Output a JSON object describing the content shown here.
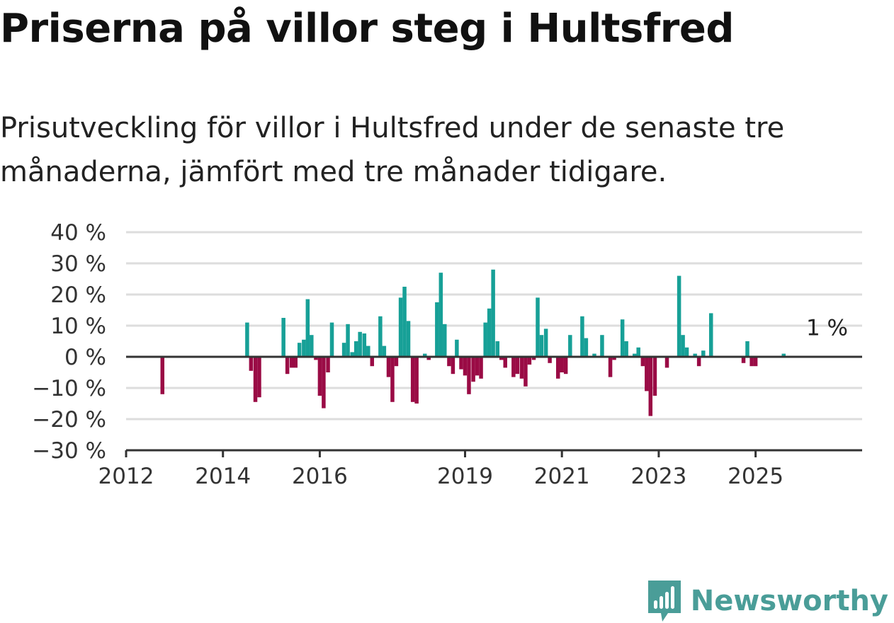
{
  "title": "Priserna på villor steg i Hultsfred",
  "subtitle": "Prisutveckling för villor i Hultsfred under de senaste tre månaderna, jämfört med tre månader tidigare.",
  "brand": "Newsworthy",
  "colors": {
    "positive": "#17a097",
    "negative": "#9a0b45",
    "grid": "#dddddd",
    "axis": "#333333",
    "brand": "#4a9d98"
  },
  "chart_data": {
    "type": "bar",
    "ylim": [
      -30,
      40
    ],
    "xlim": [
      2012.0,
      2027.2
    ],
    "y_ticks": [
      {
        "value": 40,
        "label": "40 %"
      },
      {
        "value": 30,
        "label": "30 %"
      },
      {
        "value": 20,
        "label": "20 %"
      },
      {
        "value": 10,
        "label": "10 %"
      },
      {
        "value": 0,
        "label": "0 %"
      },
      {
        "value": -10,
        "label": "−10 %"
      },
      {
        "value": -20,
        "label": "−20 %"
      },
      {
        "value": -30,
        "label": "−30 %"
      }
    ],
    "x_ticks": [
      {
        "value": 2012,
        "label": "2012"
      },
      {
        "value": 2014,
        "label": "2014"
      },
      {
        "value": 2016,
        "label": "2016"
      },
      {
        "value": 2019,
        "label": "2019"
      },
      {
        "value": 2021,
        "label": "2021"
      },
      {
        "value": 2023,
        "label": "2023"
      },
      {
        "value": 2025,
        "label": "2025"
      }
    ],
    "end_label": "1 %",
    "end_label_value": 1,
    "grid": true,
    "points": [
      {
        "x": 2012.75,
        "y": -12
      },
      {
        "x": 2014.5,
        "y": 11
      },
      {
        "x": 2014.58,
        "y": -4.5
      },
      {
        "x": 2014.67,
        "y": -14.5
      },
      {
        "x": 2014.75,
        "y": -13
      },
      {
        "x": 2015.25,
        "y": 12.5
      },
      {
        "x": 2015.33,
        "y": -5.5
      },
      {
        "x": 2015.42,
        "y": -3.5
      },
      {
        "x": 2015.5,
        "y": -3.5
      },
      {
        "x": 2015.58,
        "y": 4.5
      },
      {
        "x": 2015.67,
        "y": 5.5
      },
      {
        "x": 2015.75,
        "y": 18.5
      },
      {
        "x": 2015.83,
        "y": 7
      },
      {
        "x": 2015.92,
        "y": -1
      },
      {
        "x": 2016.0,
        "y": -12.5
      },
      {
        "x": 2016.08,
        "y": -16.5
      },
      {
        "x": 2016.17,
        "y": -5
      },
      {
        "x": 2016.25,
        "y": 11
      },
      {
        "x": 2016.5,
        "y": 4.5
      },
      {
        "x": 2016.58,
        "y": 10.5
      },
      {
        "x": 2016.67,
        "y": 1.5
      },
      {
        "x": 2016.75,
        "y": 5
      },
      {
        "x": 2016.83,
        "y": 8
      },
      {
        "x": 2016.92,
        "y": 7.5
      },
      {
        "x": 2017.0,
        "y": 3.5
      },
      {
        "x": 2017.08,
        "y": -3
      },
      {
        "x": 2017.25,
        "y": 13
      },
      {
        "x": 2017.33,
        "y": 3.5
      },
      {
        "x": 2017.42,
        "y": -6.5
      },
      {
        "x": 2017.5,
        "y": -14.5
      },
      {
        "x": 2017.58,
        "y": -3
      },
      {
        "x": 2017.67,
        "y": 19
      },
      {
        "x": 2017.75,
        "y": 22.5
      },
      {
        "x": 2017.83,
        "y": 11.5
      },
      {
        "x": 2017.92,
        "y": -14.5
      },
      {
        "x": 2018.0,
        "y": -15
      },
      {
        "x": 2018.17,
        "y": 1
      },
      {
        "x": 2018.25,
        "y": -1
      },
      {
        "x": 2018.42,
        "y": 17.5
      },
      {
        "x": 2018.5,
        "y": 27
      },
      {
        "x": 2018.58,
        "y": 10.5
      },
      {
        "x": 2018.67,
        "y": -3
      },
      {
        "x": 2018.75,
        "y": -5.5
      },
      {
        "x": 2018.83,
        "y": 5.5
      },
      {
        "x": 2018.92,
        "y": -4
      },
      {
        "x": 2019.0,
        "y": -6
      },
      {
        "x": 2019.08,
        "y": -12
      },
      {
        "x": 2019.17,
        "y": -8
      },
      {
        "x": 2019.25,
        "y": -6
      },
      {
        "x": 2019.33,
        "y": -7
      },
      {
        "x": 2019.42,
        "y": 11
      },
      {
        "x": 2019.5,
        "y": 15.5
      },
      {
        "x": 2019.58,
        "y": 28
      },
      {
        "x": 2019.67,
        "y": 5
      },
      {
        "x": 2019.75,
        "y": -1
      },
      {
        "x": 2019.83,
        "y": -3.5
      },
      {
        "x": 2020.0,
        "y": -6.5
      },
      {
        "x": 2020.08,
        "y": -5.5
      },
      {
        "x": 2020.17,
        "y": -7
      },
      {
        "x": 2020.25,
        "y": -9.5
      },
      {
        "x": 2020.33,
        "y": -2.5
      },
      {
        "x": 2020.42,
        "y": -1
      },
      {
        "x": 2020.5,
        "y": 19
      },
      {
        "x": 2020.58,
        "y": 7
      },
      {
        "x": 2020.67,
        "y": 9
      },
      {
        "x": 2020.75,
        "y": -2
      },
      {
        "x": 2020.92,
        "y": -7
      },
      {
        "x": 2021.0,
        "y": -5
      },
      {
        "x": 2021.08,
        "y": -5.5
      },
      {
        "x": 2021.17,
        "y": 7
      },
      {
        "x": 2021.42,
        "y": 13
      },
      {
        "x": 2021.5,
        "y": 6
      },
      {
        "x": 2021.67,
        "y": 1
      },
      {
        "x": 2021.83,
        "y": 7
      },
      {
        "x": 2022.0,
        "y": -6.5
      },
      {
        "x": 2022.08,
        "y": -1
      },
      {
        "x": 2022.25,
        "y": 12
      },
      {
        "x": 2022.33,
        "y": 5
      },
      {
        "x": 2022.5,
        "y": 1
      },
      {
        "x": 2022.58,
        "y": 3
      },
      {
        "x": 2022.67,
        "y": -3
      },
      {
        "x": 2022.75,
        "y": -11
      },
      {
        "x": 2022.83,
        "y": -19
      },
      {
        "x": 2022.92,
        "y": -12.5
      },
      {
        "x": 2023.17,
        "y": -3.5
      },
      {
        "x": 2023.42,
        "y": 26
      },
      {
        "x": 2023.5,
        "y": 7
      },
      {
        "x": 2023.58,
        "y": 3
      },
      {
        "x": 2023.75,
        "y": 1
      },
      {
        "x": 2023.83,
        "y": -3
      },
      {
        "x": 2023.92,
        "y": 2
      },
      {
        "x": 2024.08,
        "y": 14
      },
      {
        "x": 2024.75,
        "y": -2
      },
      {
        "x": 2024.83,
        "y": 5
      },
      {
        "x": 2024.92,
        "y": -3
      },
      {
        "x": 2025.0,
        "y": -3
      },
      {
        "x": 2025.58,
        "y": 1
      }
    ]
  }
}
